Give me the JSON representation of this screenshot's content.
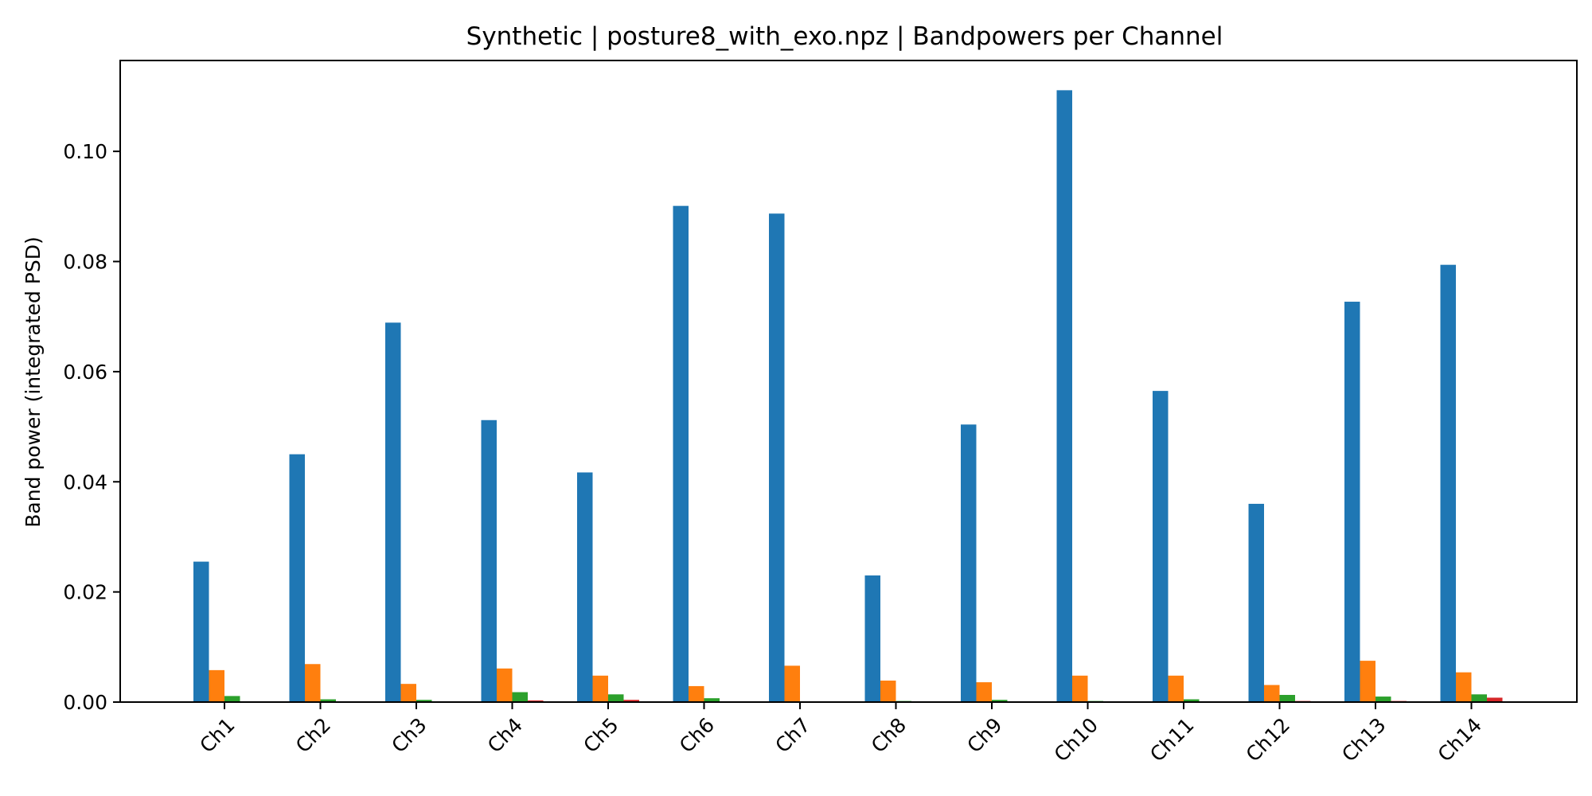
{
  "chart_data": {
    "type": "bar",
    "title": "Synthetic | posture8_with_exo.npz | Bandpowers per Channel",
    "xlabel": "",
    "ylabel": "Band power (integrated PSD)",
    "ylim": [
      0,
      0.1165
    ],
    "yticks": [
      "0.00",
      "0.02",
      "0.04",
      "0.06",
      "0.08",
      "0.10"
    ],
    "grid": false,
    "legend": "none",
    "categories": [
      "Ch1",
      "Ch2",
      "Ch3",
      "Ch4",
      "Ch5",
      "Ch6",
      "Ch7",
      "Ch8",
      "Ch9",
      "Ch10",
      "Ch11",
      "Ch12",
      "Ch13",
      "Ch14"
    ],
    "series": [
      {
        "color": "#1f77b4",
        "values": [
          0.0255,
          0.045,
          0.0689,
          0.0512,
          0.0417,
          0.0901,
          0.0887,
          0.023,
          0.0504,
          0.1111,
          0.0565,
          0.036,
          0.0727,
          0.0794
        ]
      },
      {
        "color": "#ff7f0e",
        "values": [
          0.0058,
          0.0069,
          0.0033,
          0.0061,
          0.0048,
          0.0029,
          0.0066,
          0.0039,
          0.0036,
          0.0048,
          0.0048,
          0.0031,
          0.0075,
          0.0054
        ]
      },
      {
        "color": "#2ca02c",
        "values": [
          0.0011,
          0.0005,
          0.0004,
          0.0018,
          0.0014,
          0.0007,
          0.0001,
          0.0002,
          0.0004,
          0.0002,
          0.0005,
          0.0013,
          0.001,
          0.0014
        ]
      },
      {
        "color": "#d62728",
        "values": [
          0.0001,
          0.0001,
          0.0001,
          0.0003,
          0.0004,
          0.0001,
          0.0,
          0.0,
          0.0001,
          0.0,
          0.0001,
          0.0002,
          0.0002,
          0.0008
        ]
      }
    ]
  }
}
